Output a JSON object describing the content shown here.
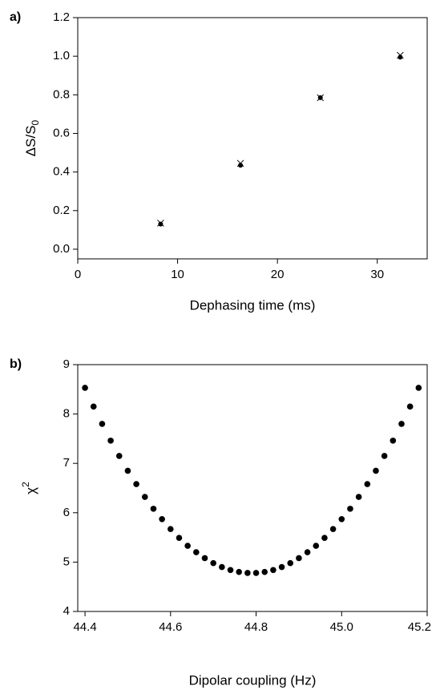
{
  "chart_data": [
    {
      "type": "scatter",
      "panel_label": "a)",
      "xlabel": "Dephasing time (ms)",
      "ylabel": "ΔS/S",
      "ylabel_sub": "0",
      "x": [
        8.3,
        16.3,
        24.3,
        32.3
      ],
      "series": [
        {
          "color": "#000000",
          "marker": "dot",
          "values": [
            0.13,
            0.435,
            0.785,
            0.995
          ]
        },
        {
          "color": "#000000",
          "marker": "cross",
          "values": [
            0.135,
            0.445,
            0.785,
            1.005
          ]
        }
      ],
      "xlim": [
        0,
        35
      ],
      "xticks": [
        0,
        10,
        20,
        30
      ],
      "ylim": [
        -0.05,
        1.2
      ],
      "yticks": [
        {
          "value": 0,
          "label": "0.0"
        },
        0.2,
        0.4,
        0.6,
        0.8,
        {
          "value": 1,
          "label": "1.0"
        },
        1.2
      ]
    },
    {
      "type": "scatter",
      "panel_label": "b)",
      "xlabel": "Dipolar coupling (Hz)",
      "ylabel": "χ",
      "ylabel_sup": "2",
      "x": [
        44.4,
        44.42,
        44.44,
        44.46,
        44.48,
        44.5,
        44.52,
        44.54,
        44.56,
        44.58,
        44.6,
        44.62,
        44.64,
        44.66,
        44.68,
        44.7,
        44.72,
        44.74,
        44.76,
        44.78,
        44.8,
        44.82,
        44.84,
        44.86,
        44.88,
        44.9,
        44.92,
        44.94,
        44.96,
        44.98,
        45.0,
        45.02,
        45.04,
        45.06,
        45.08,
        45.1,
        45.12,
        45.14,
        45.16,
        45.18
      ],
      "series": [
        {
          "color": "#000000",
          "marker": "dot",
          "values": [
            8.53,
            8.15,
            7.8,
            7.46,
            7.15,
            6.85,
            6.58,
            6.32,
            6.08,
            5.87,
            5.67,
            5.49,
            5.33,
            5.2,
            5.08,
            4.98,
            4.9,
            4.84,
            4.8,
            4.78,
            4.78,
            4.8,
            4.84,
            4.9,
            4.98,
            5.08,
            5.2,
            5.33,
            5.49,
            5.67,
            5.87,
            6.08,
            6.32,
            6.58,
            6.85,
            7.15,
            7.46,
            7.8,
            8.15,
            8.53
          ]
        }
      ],
      "xlim": [
        44.383,
        45.2
      ],
      "xticks": [
        44.4,
        44.6,
        44.8,
        {
          "value": 45,
          "label": "45.0"
        },
        45.2
      ],
      "ylim": [
        4,
        9
      ],
      "yticks": [
        4,
        5,
        6,
        7,
        8,
        9
      ]
    }
  ]
}
